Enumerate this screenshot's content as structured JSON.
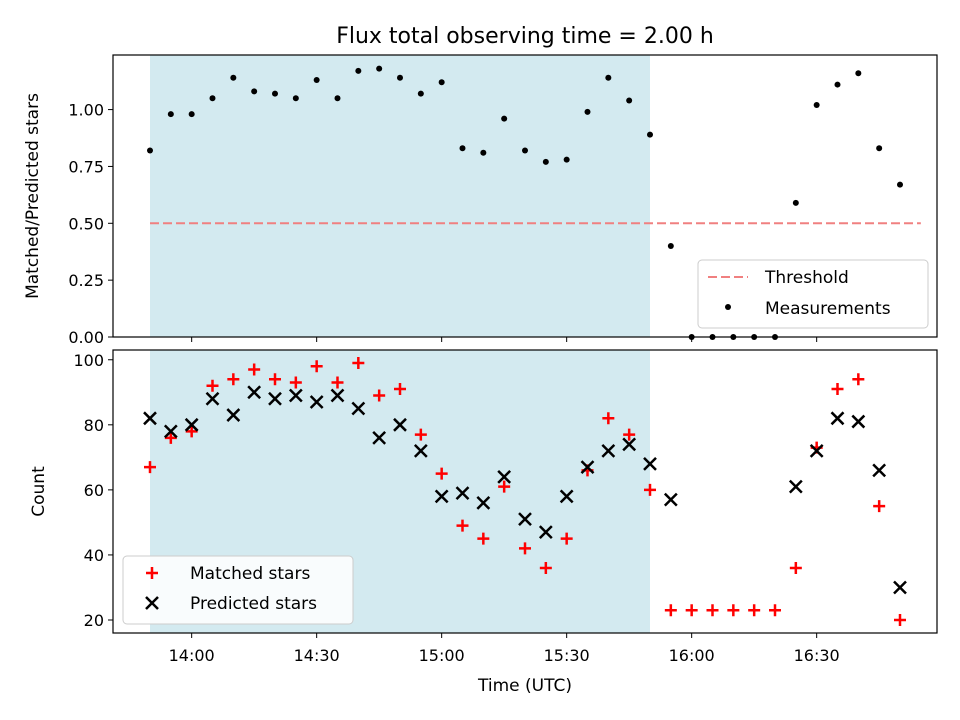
{
  "chart_data": [
    {
      "type": "scatter",
      "title": "Flux total observing time = 2.00 h",
      "ylabel": "Matched/Predicted stars",
      "xlabel": "",
      "ylim": [
        0,
        1.24
      ],
      "yticks": [
        "0.00",
        "0.25",
        "0.50",
        "0.75",
        "1.00"
      ],
      "ytick_values": [
        0,
        0.25,
        0.5,
        0.75,
        1.0
      ],
      "shaded_interval": {
        "start": "13:50",
        "end": "15:50",
        "color": "#d3eaf0"
      },
      "threshold": {
        "name": "Threshold",
        "value": 0.5,
        "x_start": "13:50",
        "x_end": "16:55",
        "color": "#f08080"
      },
      "legend": {
        "position": "lower right",
        "entries": [
          "Threshold",
          "Measurements"
        ]
      },
      "series": [
        {
          "name": "Measurements",
          "color": "#000000",
          "x": [
            "13:50",
            "13:55",
            "14:00",
            "14:05",
            "14:10",
            "14:15",
            "14:20",
            "14:25",
            "14:30",
            "14:35",
            "14:40",
            "14:45",
            "14:50",
            "14:55",
            "15:00",
            "15:05",
            "15:10",
            "15:15",
            "15:20",
            "15:25",
            "15:30",
            "15:35",
            "15:40",
            "15:45",
            "15:50",
            "15:55",
            "16:00",
            "16:05",
            "16:10",
            "16:15",
            "16:20",
            "16:25",
            "16:30",
            "16:35",
            "16:40",
            "16:45",
            "16:50"
          ],
          "values": [
            0.82,
            0.98,
            0.98,
            1.05,
            1.14,
            1.08,
            1.07,
            1.05,
            1.13,
            1.05,
            1.17,
            1.18,
            1.14,
            1.07,
            1.12,
            0.83,
            0.81,
            0.96,
            0.82,
            0.77,
            0.78,
            0.99,
            1.14,
            1.04,
            0.89,
            0.4,
            0.0,
            0.0,
            0.0,
            0.0,
            0.0,
            0.59,
            1.02,
            1.11,
            1.16,
            0.83,
            0.67
          ]
        }
      ]
    },
    {
      "type": "scatter",
      "title": "",
      "ylabel": "Count",
      "xlabel": "Time (UTC)",
      "ylim": [
        16,
        103
      ],
      "yticks": [
        "20",
        "40",
        "60",
        "80",
        "100"
      ],
      "ytick_values": [
        20,
        40,
        60,
        80,
        100
      ],
      "xticks": [
        "14:00",
        "14:30",
        "15:00",
        "15:30",
        "16:00",
        "16:30"
      ],
      "shaded_interval": {
        "start": "13:50",
        "end": "15:50",
        "color": "#d3eaf0"
      },
      "legend": {
        "position": "lower left",
        "entries": [
          "Matched stars",
          "Predicted stars"
        ]
      },
      "series": [
        {
          "name": "Matched stars",
          "marker": "plus",
          "color": "#ff0000",
          "x": [
            "13:50",
            "13:55",
            "14:00",
            "14:05",
            "14:10",
            "14:15",
            "14:20",
            "14:25",
            "14:30",
            "14:35",
            "14:40",
            "14:45",
            "14:50",
            "14:55",
            "15:00",
            "15:05",
            "15:10",
            "15:15",
            "15:20",
            "15:25",
            "15:30",
            "15:35",
            "15:40",
            "15:45",
            "15:50",
            "15:55",
            "16:00",
            "16:05",
            "16:10",
            "16:15",
            "16:20",
            "16:25",
            "16:30",
            "16:35",
            "16:40",
            "16:45",
            "16:50"
          ],
          "values": [
            67,
            76,
            78,
            92,
            94,
            97,
            94,
            93,
            98,
            93,
            99,
            89,
            91,
            77,
            65,
            49,
            45,
            61,
            42,
            36,
            45,
            66,
            82,
            77,
            60,
            23,
            23,
            23,
            23,
            23,
            23,
            36,
            73,
            91,
            94,
            55,
            20
          ]
        },
        {
          "name": "Predicted stars",
          "marker": "x",
          "color": "#000000",
          "x": [
            "13:50",
            "13:55",
            "14:00",
            "14:05",
            "14:10",
            "14:15",
            "14:20",
            "14:25",
            "14:30",
            "14:35",
            "14:40",
            "14:45",
            "14:50",
            "14:55",
            "15:00",
            "15:05",
            "15:10",
            "15:15",
            "15:20",
            "15:25",
            "15:30",
            "15:35",
            "15:40",
            "15:45",
            "15:50",
            "15:55",
            "16:25",
            "16:30",
            "16:35",
            "16:40",
            "16:45",
            "16:50"
          ],
          "values": [
            82,
            78,
            80,
            88,
            83,
            90,
            88,
            89,
            87,
            89,
            85,
            76,
            80,
            72,
            58,
            59,
            56,
            64,
            51,
            47,
            58,
            67,
            72,
            74,
            68,
            57,
            61,
            72,
            82,
            81,
            66,
            30
          ]
        }
      ]
    }
  ]
}
